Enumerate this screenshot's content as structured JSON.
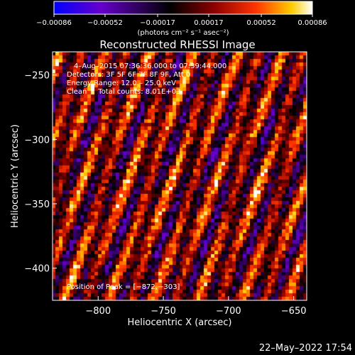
{
  "chart_data": {
    "type": "heatmap",
    "title": "Reconstructed RHESSI Image",
    "xlabel": "Heliocentric X (arcsec)",
    "ylabel": "Heliocentric Y (arcsec)",
    "xlim": [
      -835,
      -640
    ],
    "ylim": [
      -425,
      -232
    ],
    "x_ticks": [
      -800,
      -750,
      -700,
      -650
    ],
    "x_tick_labels": [
      "−800",
      "−750",
      "−700",
      "−650"
    ],
    "y_ticks": [
      -250,
      -300,
      -350,
      -400
    ],
    "y_tick_labels": [
      "−250",
      "−300",
      "−350",
      "−400"
    ],
    "colorbar": {
      "min": -0.00086,
      "max": 0.00086,
      "ticks": [
        -0.00086,
        -0.00052,
        -0.00017,
        0.00017,
        0.00052,
        0.00086
      ],
      "tick_labels": [
        "−0.00086",
        "−0.00052",
        "−0.00017",
        "0.00017",
        "0.00052",
        "0.00086"
      ],
      "label": "(photons cm⁻² s⁻¹ asec⁻²)",
      "colormap": [
        "#0000ff",
        "#6600cc",
        "#000000",
        "#8c0000",
        "#ff3300",
        "#ffcc00",
        "#ffffff"
      ]
    },
    "annotations": [
      "4–Aug–2015 07:36:36.000 to 07:39:44.000",
      "Detectors: 3F 5F 6F 7F 8F 9F, Att 0",
      "Energy Range: 12.0 – 25.0 keV",
      "Clean     Total counts: 8.01E+03",
      "Position of Peak = [−872,−303]"
    ],
    "peak": [
      -872,
      -303
    ]
  },
  "footer": {
    "timestamp": "22–May–2022 17:54"
  }
}
